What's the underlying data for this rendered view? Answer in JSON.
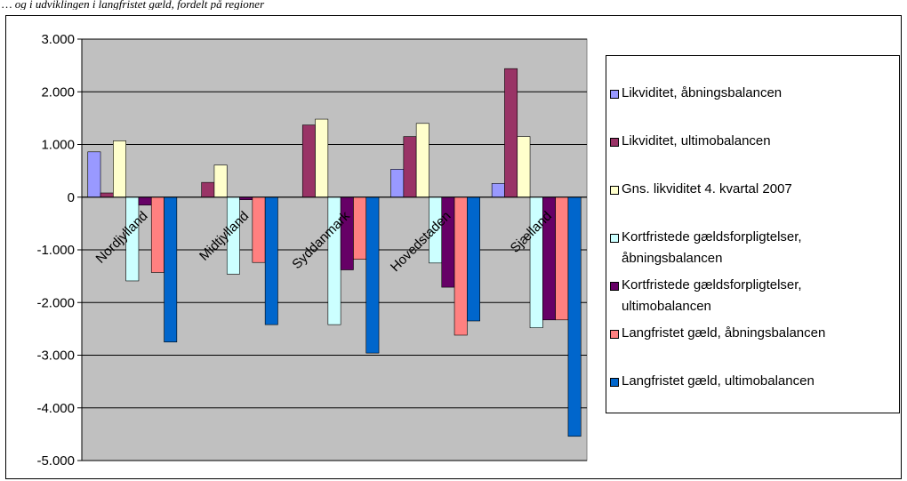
{
  "caption": "… og i udviklingen i langfristet gæld, fordelt på regioner",
  "chart_data": {
    "type": "bar",
    "categories": [
      "Nordjylland",
      "Midtjylland",
      "Syddanmark",
      "Hovedstaden",
      "Sjælland"
    ],
    "ylim": [
      -5000,
      3000
    ],
    "yticks": [
      3000,
      2000,
      1000,
      0,
      -1000,
      -2000,
      -3000,
      -4000,
      -5000
    ],
    "ytick_labels": [
      "3.000",
      "2.000",
      "1.000",
      "0",
      "-1.000",
      "-2.000",
      "-3.000",
      "-4.000",
      "-5.000"
    ],
    "plot_background": "#c0c0c0",
    "legend_position": "right",
    "series": [
      {
        "name": "Likviditet, åbningsbalancen",
        "color": "#9999ff",
        "values": [
          860,
          0,
          0,
          530,
          260
        ]
      },
      {
        "name": "Likviditet, ultimobalancen",
        "color": "#993366",
        "values": [
          80,
          280,
          1370,
          1150,
          2440
        ]
      },
      {
        "name": "Gns. likviditet 4. kvartal 2007",
        "color": "#ffffcc",
        "values": [
          1070,
          610,
          1480,
          1400,
          1150
        ]
      },
      {
        "name": "Kortfristede gældsforpligtelser,\nåbningsbalancen",
        "color": "#ccffff",
        "values": [
          -1590,
          -1460,
          -2420,
          -1250,
          -2480
        ]
      },
      {
        "name": "Kortfristede gældsforpligtelser,\nultimobalancen",
        "color": "#660066",
        "values": [
          -150,
          -50,
          -1380,
          -1710,
          -2330
        ]
      },
      {
        "name": "Langfristet gæld, åbningsbalancen",
        "color": "#ff8080",
        "values": [
          -1430,
          -1240,
          -1180,
          -2620,
          -2330
        ]
      },
      {
        "name": "Langfristet gæld, ultimobalancen",
        "color": "#0066cc",
        "values": [
          -2750,
          -2420,
          -2960,
          -2350,
          -4540
        ]
      }
    ]
  }
}
